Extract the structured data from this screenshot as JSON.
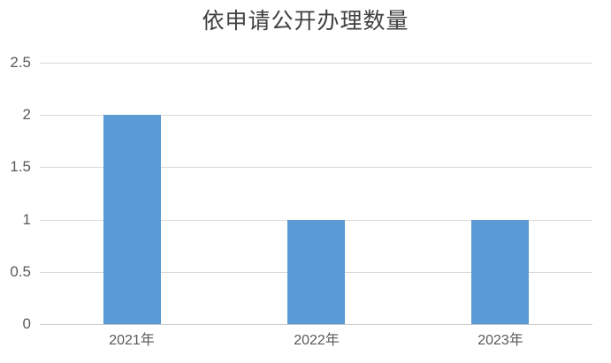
{
  "chart_data": {
    "type": "bar",
    "title": "依申请公开办理数量",
    "categories": [
      "2021年",
      "2022年",
      "2023年"
    ],
    "values": [
      2,
      1,
      1
    ],
    "yticks": [
      0,
      0.5,
      1,
      1.5,
      2,
      2.5
    ],
    "ylim": [
      0,
      2.5
    ],
    "xlabel": "",
    "ylabel": "",
    "grid": true,
    "legend": false,
    "colors": {
      "bar": "#5B9BD5",
      "gridline": "#D9D9D9",
      "axis_line": "#C9C9C9",
      "tick_label": "#595959",
      "title": "#404040"
    }
  }
}
